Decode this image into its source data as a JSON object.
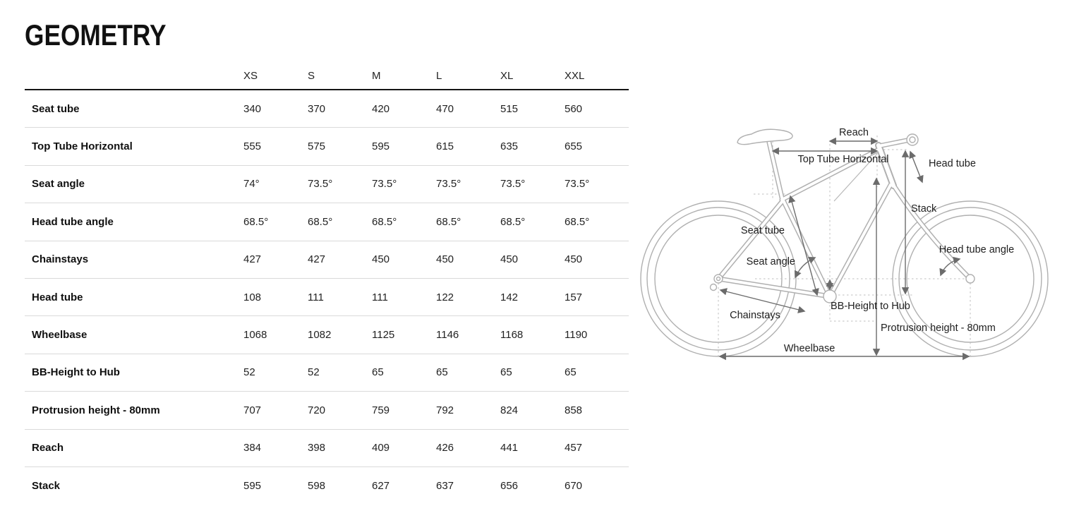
{
  "title": "GEOMETRY",
  "table": {
    "size_headers": [
      "XS",
      "S",
      "M",
      "L",
      "XL",
      "XXL"
    ],
    "rows": [
      {
        "label": "Seat tube",
        "values": [
          "340",
          "370",
          "420",
          "470",
          "515",
          "560"
        ]
      },
      {
        "label": "Top Tube Horizontal",
        "values": [
          "555",
          "575",
          "595",
          "615",
          "635",
          "655"
        ]
      },
      {
        "label": "Seat angle",
        "values": [
          "74°",
          "73.5°",
          "73.5°",
          "73.5°",
          "73.5°",
          "73.5°"
        ]
      },
      {
        "label": "Head tube angle",
        "values": [
          "68.5°",
          "68.5°",
          "68.5°",
          "68.5°",
          "68.5°",
          "68.5°"
        ]
      },
      {
        "label": "Chainstays",
        "values": [
          "427",
          "427",
          "450",
          "450",
          "450",
          "450"
        ]
      },
      {
        "label": "Head tube",
        "values": [
          "108",
          "111",
          "111",
          "122",
          "142",
          "157"
        ]
      },
      {
        "label": "Wheelbase",
        "values": [
          "1068",
          "1082",
          "1125",
          "1146",
          "1168",
          "1190"
        ]
      },
      {
        "label": "BB-Height to Hub",
        "values": [
          "52",
          "52",
          "65",
          "65",
          "65",
          "65"
        ]
      },
      {
        "label": "Protrusion height - 80mm",
        "values": [
          "707",
          "720",
          "759",
          "792",
          "824",
          "858"
        ]
      },
      {
        "label": "Reach",
        "values": [
          "384",
          "398",
          "409",
          "426",
          "441",
          "457"
        ]
      },
      {
        "label": "Stack",
        "values": [
          "595",
          "598",
          "627",
          "637",
          "656",
          "670"
        ]
      }
    ]
  },
  "diagram": {
    "labels": {
      "reach": "Reach",
      "top_tube_horizontal": "Top Tube Horizontal",
      "head_tube": "Head tube",
      "stack": "Stack",
      "seat_tube": "Seat tube",
      "seat_angle": "Seat angle",
      "head_tube_angle": "Head tube angle",
      "bb_height_to_hub": "BB-Height to Hub",
      "chainstays": "Chainstays",
      "protrusion_height": "Protrusion height - 80mm",
      "wheelbase": "Wheelbase"
    },
    "colors": {
      "bike_outline": "#b0b0b0",
      "dimension_arrows": "#6b6b6b",
      "label_text": "#1e1e1e"
    }
  }
}
